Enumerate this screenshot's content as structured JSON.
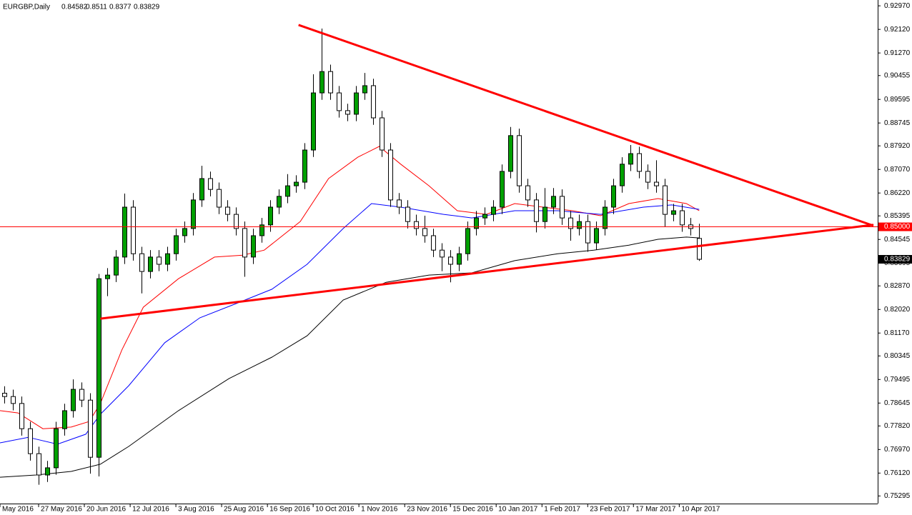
{
  "chart_data": {
    "type": "candlestick",
    "title": "EURGBP,Daily",
    "xlim": [
      -0.5,
      101.8
    ],
    "ylim": [
      0.7502,
      0.9318
    ],
    "xticks": [
      {
        "value": -0.5,
        "label": "May 2016"
      },
      {
        "value": 4,
        "label": "27 May 2016"
      },
      {
        "value": 9.33,
        "label": "20 Jun 2016"
      },
      {
        "value": 14.67,
        "label": "12 Jul 2016"
      },
      {
        "value": 20,
        "label": "3 Aug 2016"
      },
      {
        "value": 25.33,
        "label": "25 Aug 2016"
      },
      {
        "value": 30.67,
        "label": "16 Sep 2016"
      },
      {
        "value": 36,
        "label": "10 Oct 2016"
      },
      {
        "value": 41.33,
        "label": "1 Nov 2016"
      },
      {
        "value": 46.67,
        "label": "23 Nov 2016"
      },
      {
        "value": 52,
        "label": "15 Dec 2016"
      },
      {
        "value": 57.33,
        "label": "10 Jan 2017"
      },
      {
        "value": 62.67,
        "label": "1 Feb 2017"
      },
      {
        "value": 68,
        "label": "23 Feb 2017"
      },
      {
        "value": 73.33,
        "label": "17 Mar 2017"
      },
      {
        "value": 78.67,
        "label": "10 Apr 2017"
      }
    ],
    "yticks": [
      {
        "value": 0.9297,
        "label": "0.92970"
      },
      {
        "value": 0.9212,
        "label": "0.92120"
      },
      {
        "value": 0.9127,
        "label": "0.91270"
      },
      {
        "value": 0.90455,
        "label": "0.90455"
      },
      {
        "value": 0.89595,
        "label": "0.89595"
      },
      {
        "value": 0.88745,
        "label": "0.88745"
      },
      {
        "value": 0.8792,
        "label": "0.87920"
      },
      {
        "value": 0.8707,
        "label": "0.87070"
      },
      {
        "value": 0.8622,
        "label": "0.86220"
      },
      {
        "value": 0.85395,
        "label": "0.85395"
      },
      {
        "value": 0.84545,
        "label": "0.84545"
      },
      {
        "value": 0.83695,
        "label": "0.83695"
      },
      {
        "value": 0.8287,
        "label": "0.82870"
      },
      {
        "value": 0.8202,
        "label": "0.82020"
      },
      {
        "value": 0.8117,
        "label": "0.81170"
      },
      {
        "value": 0.80345,
        "label": "0.80345"
      },
      {
        "value": 0.79495,
        "label": "0.79495"
      },
      {
        "value": 0.78645,
        "label": "0.78645"
      },
      {
        "value": 0.7782,
        "label": "0.77820"
      },
      {
        "value": 0.7697,
        "label": "0.76970"
      },
      {
        "value": 0.7612,
        "label": "0.76120"
      },
      {
        "value": 0.75295,
        "label": "0.75295"
      }
    ],
    "bull_color": "#00a000",
    "bear_color": "#ffffff",
    "candles": {
      "open": [
        0.79,
        0.7888,
        0.7863,
        0.7772,
        0.7682,
        0.7605,
        0.7631,
        0.7772,
        0.7837,
        0.7914,
        0.7875,
        0.7669,
        0.8313,
        0.8326,
        0.8391,
        0.8571,
        0.8403,
        0.8339,
        0.8391,
        0.8365,
        0.8403,
        0.8468,
        0.8494,
        0.8597,
        0.8674,
        0.8635,
        0.8571,
        0.8545,
        0.8494,
        0.8391,
        0.8468,
        0.8507,
        0.8571,
        0.861,
        0.8648,
        0.8661,
        0.8777,
        0.8983,
        0.906,
        0.8983,
        0.8919,
        0.8906,
        0.8983,
        0.9009,
        0.8893,
        0.8777,
        0.8597,
        0.8571,
        0.8519,
        0.8494,
        0.8468,
        0.8416,
        0.8391,
        0.8365,
        0.8403,
        0.8494,
        0.8532,
        0.8545,
        0.8571,
        0.87,
        0.8829,
        0.8648,
        0.8597,
        0.8519,
        0.8571,
        0.861,
        0.8532,
        0.8494,
        0.8519,
        0.8442,
        0.8494,
        0.8571,
        0.8648,
        0.8726,
        0.8764,
        0.87,
        0.8661,
        0.8648,
        0.8545,
        0.8558,
        0.8507,
        0.84582
      ],
      "high": [
        0.7925,
        0.7913,
        0.7888,
        0.7797,
        0.7707,
        0.7656,
        0.7797,
        0.7862,
        0.795,
        0.7939,
        0.79,
        0.833,
        0.8351,
        0.8416,
        0.862,
        0.8596,
        0.8428,
        0.8416,
        0.8416,
        0.8428,
        0.8493,
        0.8519,
        0.8622,
        0.872,
        0.8699,
        0.866,
        0.8596,
        0.857,
        0.8519,
        0.8493,
        0.8532,
        0.8596,
        0.8635,
        0.869,
        0.8686,
        0.8802,
        0.905,
        0.9215,
        0.9085,
        0.9008,
        0.8944,
        0.9008,
        0.9055,
        0.9034,
        0.8918,
        0.8802,
        0.8622,
        0.8596,
        0.8544,
        0.854,
        0.8493,
        0.8441,
        0.8416,
        0.8428,
        0.8519,
        0.8557,
        0.857,
        0.8596,
        0.8725,
        0.886,
        0.8854,
        0.8673,
        0.8622,
        0.864,
        0.864,
        0.8635,
        0.8557,
        0.8544,
        0.8544,
        0.8519,
        0.8596,
        0.8673,
        0.8751,
        0.8795,
        0.8789,
        0.8725,
        0.874,
        0.8673,
        0.8583,
        0.8583,
        0.8532,
        0.8511
      ],
      "low": [
        0.7863,
        0.7838,
        0.7747,
        0.7657,
        0.757,
        0.758,
        0.7606,
        0.7747,
        0.7812,
        0.785,
        0.761,
        0.76,
        0.825,
        0.8301,
        0.8366,
        0.8378,
        0.826,
        0.8314,
        0.834,
        0.834,
        0.8378,
        0.8443,
        0.8469,
        0.8572,
        0.861,
        0.8546,
        0.852,
        0.8469,
        0.832,
        0.8366,
        0.8443,
        0.8482,
        0.8546,
        0.8585,
        0.8623,
        0.8636,
        0.8752,
        0.8958,
        0.8958,
        0.8894,
        0.8881,
        0.8881,
        0.8958,
        0.8868,
        0.8752,
        0.8572,
        0.8546,
        0.8494,
        0.8469,
        0.8443,
        0.8391,
        0.834,
        0.83,
        0.834,
        0.8378,
        0.8469,
        0.8507,
        0.852,
        0.8546,
        0.8675,
        0.8623,
        0.8572,
        0.848,
        0.8494,
        0.8546,
        0.8507,
        0.845,
        0.8469,
        0.841,
        0.8417,
        0.8469,
        0.8546,
        0.8623,
        0.8701,
        0.8675,
        0.8636,
        0.8623,
        0.85,
        0.852,
        0.8482,
        0.8469,
        0.8377
      ],
      "close": [
        0.7888,
        0.7863,
        0.7772,
        0.7682,
        0.7605,
        0.7631,
        0.7772,
        0.7837,
        0.7914,
        0.7875,
        0.7669,
        0.8313,
        0.8326,
        0.8391,
        0.8571,
        0.8403,
        0.8339,
        0.8391,
        0.8365,
        0.8403,
        0.8468,
        0.8494,
        0.8597,
        0.8674,
        0.8635,
        0.8571,
        0.8545,
        0.8494,
        0.8391,
        0.8468,
        0.8507,
        0.8571,
        0.861,
        0.8648,
        0.8661,
        0.8777,
        0.8983,
        0.906,
        0.8983,
        0.8919,
        0.8906,
        0.8983,
        0.9009,
        0.8893,
        0.8777,
        0.8597,
        0.8571,
        0.8519,
        0.8494,
        0.8468,
        0.8416,
        0.8391,
        0.8365,
        0.8403,
        0.8494,
        0.8532,
        0.8545,
        0.8571,
        0.87,
        0.8829,
        0.8648,
        0.8597,
        0.8519,
        0.8571,
        0.861,
        0.8532,
        0.8494,
        0.8519,
        0.8442,
        0.8494,
        0.8571,
        0.8648,
        0.8726,
        0.8764,
        0.87,
        0.8661,
        0.8648,
        0.8545,
        0.8558,
        0.8507,
        0.8494,
        0.83829
      ]
    },
    "lines": [
      {
        "color": "#ff0000",
        "x": [
          -0.5,
          1.6,
          4.5,
          7.8,
          9.9,
          11.2,
          13.7,
          16.2,
          20.3,
          24.5,
          27.8,
          30.3,
          34.5,
          37.8,
          41.2,
          43.7,
          46.2,
          49.5,
          52.8,
          56.2,
          59.5,
          62.8,
          66.2,
          69.5,
          72.8,
          76.2,
          79.5,
          81
        ],
        "values": [
          0.7837,
          0.7829,
          0.7772,
          0.7778,
          0.7798,
          0.7863,
          0.8056,
          0.821,
          0.8313,
          0.8391,
          0.8398,
          0.8416,
          0.8519,
          0.8674,
          0.8751,
          0.879,
          0.8726,
          0.8648,
          0.8558,
          0.8545,
          0.8584,
          0.8571,
          0.8558,
          0.854,
          0.8584,
          0.8602,
          0.8584,
          0.8558
        ]
      },
      {
        "color": "#0000ff",
        "x": [
          -0.5,
          2.8,
          6.2,
          9.5,
          11.2,
          14.5,
          18.7,
          22.8,
          27,
          31.2,
          35.3,
          39.5,
          42.8,
          46.2,
          51.2,
          54.5,
          59.5,
          64.5,
          69.5,
          74.5,
          77.8,
          81
        ],
        "values": [
          0.7721,
          0.7741,
          0.7716,
          0.7752,
          0.7824,
          0.7927,
          0.8082,
          0.8172,
          0.8223,
          0.8275,
          0.8365,
          0.8494,
          0.8584,
          0.8571,
          0.8545,
          0.8532,
          0.8558,
          0.8558,
          0.8545,
          0.8571,
          0.8579,
          0.8563
        ]
      },
      {
        "color": "#000000",
        "x": [
          -0.5,
          3.7,
          7.8,
          11.2,
          14.5,
          20.3,
          26.2,
          31.2,
          35.3,
          39.5,
          44.5,
          49.5,
          54.5,
          59.5,
          64.5,
          68.7,
          72.8,
          76.2,
          79.5,
          81
        ],
        "values": [
          0.7597,
          0.7605,
          0.7618,
          0.7644,
          0.7708,
          0.7837,
          0.7953,
          0.803,
          0.8107,
          0.8236,
          0.83,
          0.8326,
          0.8334,
          0.8378,
          0.8403,
          0.8416,
          0.8434,
          0.8455,
          0.8463,
          0.846
        ]
      }
    ],
    "trendlines": [
      {
        "color": "#ff0000",
        "x": [
          34.3,
          101.3
        ],
        "values": [
          0.9228,
          0.8504
        ]
      },
      {
        "color": "#ff0000",
        "x": [
          11.2,
          101.3
        ],
        "values": [
          0.8169,
          0.8507
        ]
      }
    ],
    "hline": {
      "value": 0.85,
      "label": "0.85000",
      "color": "#ff0000"
    }
  }
}
